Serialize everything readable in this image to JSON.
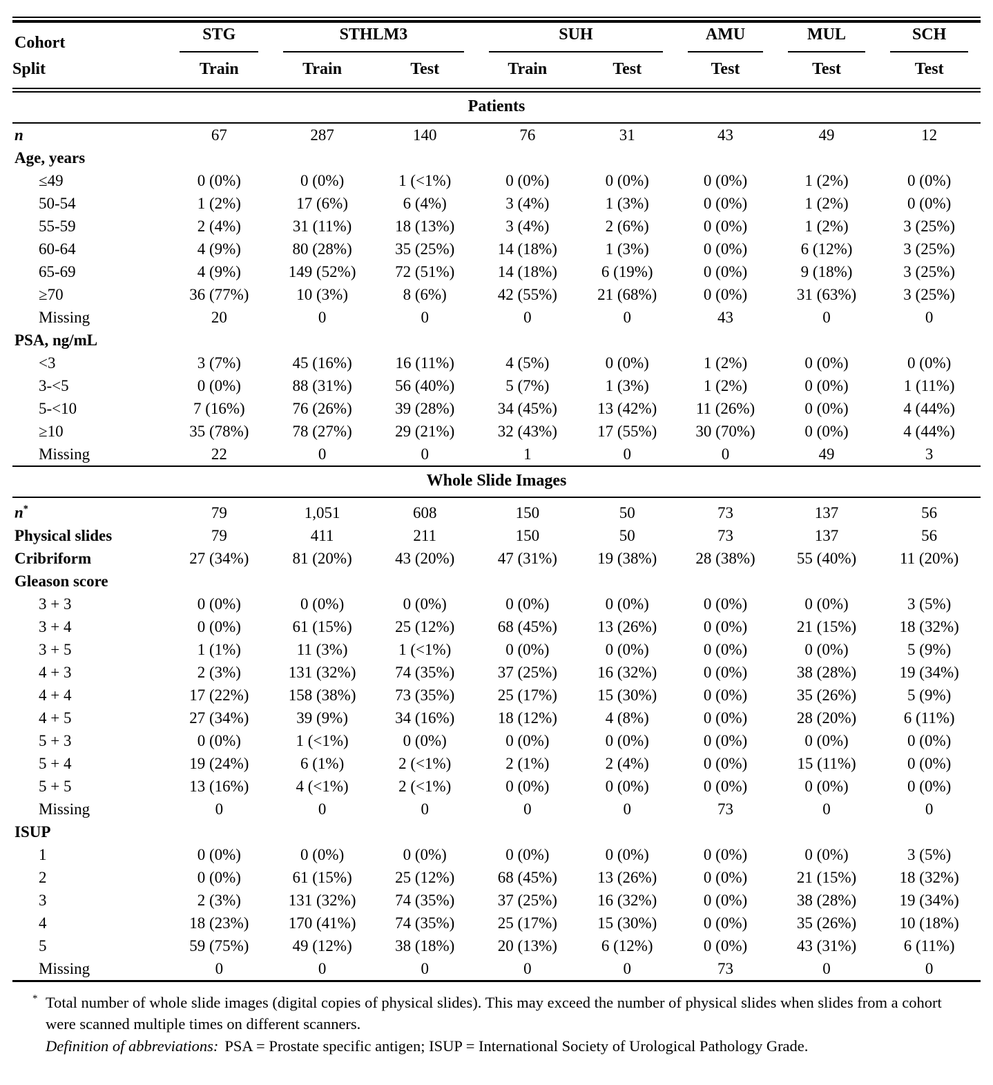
{
  "table": {
    "corner": {
      "cohort": "Cohort",
      "split": "Split"
    },
    "cohorts": [
      {
        "name": "STG",
        "splits": [
          "Train"
        ]
      },
      {
        "name": "STHLM3",
        "splits": [
          "Train",
          "Test"
        ]
      },
      {
        "name": "SUH",
        "splits": [
          "Train",
          "Test"
        ]
      },
      {
        "name": "AMU",
        "splits": [
          "Test"
        ]
      },
      {
        "name": "MUL",
        "splits": [
          "Test"
        ]
      },
      {
        "name": "SCH",
        "splits": [
          "Test"
        ]
      }
    ],
    "sections": [
      {
        "title": "Patients",
        "rows": [
          {
            "label": "n",
            "style": "n",
            "values": [
              "67",
              "287",
              "140",
              "76",
              "31",
              "43",
              "49",
              "12"
            ]
          },
          {
            "label": "Age, years",
            "style": "group",
            "values": []
          },
          {
            "label": "≤49",
            "style": "item",
            "values": [
              "0 (0%)",
              "0 (0%)",
              "1 (<1%)",
              "0 (0%)",
              "0 (0%)",
              "0 (0%)",
              "1 (2%)",
              "0 (0%)"
            ]
          },
          {
            "label": "50-54",
            "style": "item",
            "values": [
              "1 (2%)",
              "17 (6%)",
              "6 (4%)",
              "3 (4%)",
              "1 (3%)",
              "0 (0%)",
              "1 (2%)",
              "0 (0%)"
            ]
          },
          {
            "label": "55-59",
            "style": "item",
            "values": [
              "2 (4%)",
              "31 (11%)",
              "18 (13%)",
              "3 (4%)",
              "2 (6%)",
              "0 (0%)",
              "1 (2%)",
              "3 (25%)"
            ]
          },
          {
            "label": "60-64",
            "style": "item",
            "values": [
              "4 (9%)",
              "80 (28%)",
              "35 (25%)",
              "14 (18%)",
              "1 (3%)",
              "0 (0%)",
              "6 (12%)",
              "3 (25%)"
            ]
          },
          {
            "label": "65-69",
            "style": "item",
            "values": [
              "4 (9%)",
              "149 (52%)",
              "72 (51%)",
              "14 (18%)",
              "6 (19%)",
              "0 (0%)",
              "9 (18%)",
              "3 (25%)"
            ]
          },
          {
            "label": "≥70",
            "style": "item",
            "values": [
              "36 (77%)",
              "10 (3%)",
              "8 (6%)",
              "42 (55%)",
              "21 (68%)",
              "0 (0%)",
              "31 (63%)",
              "3 (25%)"
            ]
          },
          {
            "label": "Missing",
            "style": "item",
            "values": [
              "20",
              "0",
              "0",
              "0",
              "0",
              "43",
              "0",
              "0"
            ]
          },
          {
            "label": "PSA, ng/mL",
            "style": "group",
            "values": []
          },
          {
            "label": "<3",
            "style": "item",
            "values": [
              "3 (7%)",
              "45 (16%)",
              "16 (11%)",
              "4 (5%)",
              "0 (0%)",
              "1 (2%)",
              "0 (0%)",
              "0 (0%)"
            ]
          },
          {
            "label": "3-<5",
            "style": "item",
            "values": [
              "0 (0%)",
              "88 (31%)",
              "56 (40%)",
              "5 (7%)",
              "1 (3%)",
              "1 (2%)",
              "0 (0%)",
              "1 (11%)"
            ]
          },
          {
            "label": "5-<10",
            "style": "item",
            "values": [
              "7 (16%)",
              "76 (26%)",
              "39 (28%)",
              "34 (45%)",
              "13 (42%)",
              "11 (26%)",
              "0 (0%)",
              "4 (44%)"
            ]
          },
          {
            "label": "≥10",
            "style": "item",
            "values": [
              "35 (78%)",
              "78 (27%)",
              "29 (21%)",
              "32 (43%)",
              "17 (55%)",
              "30 (70%)",
              "0 (0%)",
              "4 (44%)"
            ]
          },
          {
            "label": "Missing",
            "style": "item",
            "values": [
              "22",
              "0",
              "0",
              "1",
              "0",
              "0",
              "49",
              "3"
            ]
          }
        ]
      },
      {
        "title": "Whole Slide Images",
        "rows": [
          {
            "label": "n",
            "sup": "*",
            "style": "nstar",
            "values": [
              "79",
              "1,051",
              "608",
              "150",
              "50",
              "73",
              "137",
              "56"
            ]
          },
          {
            "label": "Physical slides",
            "style": "group",
            "values": [
              "79",
              "411",
              "211",
              "150",
              "50",
              "73",
              "137",
              "56"
            ]
          },
          {
            "label": "Cribriform",
            "style": "group",
            "values": [
              "27 (34%)",
              "81 (20%)",
              "43 (20%)",
              "47 (31%)",
              "19 (38%)",
              "28 (38%)",
              "55 (40%)",
              "11 (20%)"
            ]
          },
          {
            "label": "Gleason score",
            "style": "group",
            "values": []
          },
          {
            "label": "3 + 3",
            "style": "item",
            "values": [
              "0 (0%)",
              "0 (0%)",
              "0 (0%)",
              "0 (0%)",
              "0 (0%)",
              "0 (0%)",
              "0 (0%)",
              "3 (5%)"
            ]
          },
          {
            "label": "3 + 4",
            "style": "item",
            "values": [
              "0 (0%)",
              "61 (15%)",
              "25 (12%)",
              "68 (45%)",
              "13 (26%)",
              "0 (0%)",
              "21 (15%)",
              "18 (32%)"
            ]
          },
          {
            "label": "3 + 5",
            "style": "item",
            "values": [
              "1 (1%)",
              "11 (3%)",
              "1 (<1%)",
              "0 (0%)",
              "0 (0%)",
              "0 (0%)",
              "0 (0%)",
              "5 (9%)"
            ]
          },
          {
            "label": "4 + 3",
            "style": "item",
            "values": [
              "2 (3%)",
              "131 (32%)",
              "74 (35%)",
              "37 (25%)",
              "16 (32%)",
              "0 (0%)",
              "38 (28%)",
              "19 (34%)"
            ]
          },
          {
            "label": "4 + 4",
            "style": "item",
            "values": [
              "17 (22%)",
              "158 (38%)",
              "73 (35%)",
              "25 (17%)",
              "15 (30%)",
              "0 (0%)",
              "35 (26%)",
              "5 (9%)"
            ]
          },
          {
            "label": "4 + 5",
            "style": "item",
            "values": [
              "27 (34%)",
              "39 (9%)",
              "34 (16%)",
              "18 (12%)",
              "4 (8%)",
              "0 (0%)",
              "28 (20%)",
              "6 (11%)"
            ]
          },
          {
            "label": "5 + 3",
            "style": "item",
            "values": [
              "0 (0%)",
              "1 (<1%)",
              "0 (0%)",
              "0 (0%)",
              "0 (0%)",
              "0 (0%)",
              "0 (0%)",
              "0 (0%)"
            ]
          },
          {
            "label": "5 + 4",
            "style": "item",
            "values": [
              "19 (24%)",
              "6 (1%)",
              "2 (<1%)",
              "2 (1%)",
              "2 (4%)",
              "0 (0%)",
              "15 (11%)",
              "0 (0%)"
            ]
          },
          {
            "label": "5 + 5",
            "style": "item",
            "values": [
              "13 (16%)",
              "4 (<1%)",
              "2 (<1%)",
              "0 (0%)",
              "0 (0%)",
              "0 (0%)",
              "0 (0%)",
              "0 (0%)"
            ]
          },
          {
            "label": "Missing",
            "style": "item",
            "values": [
              "0",
              "0",
              "0",
              "0",
              "0",
              "73",
              "0",
              "0"
            ]
          },
          {
            "label": "ISUP",
            "style": "group",
            "values": []
          },
          {
            "label": "1",
            "style": "item",
            "values": [
              "0 (0%)",
              "0 (0%)",
              "0 (0%)",
              "0 (0%)",
              "0 (0%)",
              "0 (0%)",
              "0 (0%)",
              "3 (5%)"
            ]
          },
          {
            "label": "2",
            "style": "item",
            "values": [
              "0 (0%)",
              "61 (15%)",
              "25 (12%)",
              "68 (45%)",
              "13 (26%)",
              "0 (0%)",
              "21 (15%)",
              "18 (32%)"
            ]
          },
          {
            "label": "3",
            "style": "item",
            "values": [
              "2 (3%)",
              "131 (32%)",
              "74 (35%)",
              "37 (25%)",
              "16 (32%)",
              "0 (0%)",
              "38 (28%)",
              "19 (34%)"
            ]
          },
          {
            "label": "4",
            "style": "item",
            "values": [
              "18 (23%)",
              "170 (41%)",
              "74 (35%)",
              "25 (17%)",
              "15 (30%)",
              "0 (0%)",
              "35 (26%)",
              "10 (18%)"
            ]
          },
          {
            "label": "5",
            "style": "item",
            "values": [
              "59 (75%)",
              "49 (12%)",
              "38 (18%)",
              "20 (13%)",
              "6 (12%)",
              "0 (0%)",
              "43 (31%)",
              "6 (11%)"
            ]
          },
          {
            "label": "Missing",
            "style": "item",
            "values": [
              "0",
              "0",
              "0",
              "0",
              "0",
              "73",
              "0",
              "0"
            ]
          }
        ]
      }
    ]
  },
  "footnotes": {
    "star": {
      "marker": "*",
      "text": "Total number of whole slide images (digital copies of physical slides). This may exceed the number of physical slides when slides from a cohort were scanned multiple times on different scanners."
    },
    "abbreviations": {
      "lead": "Definition of abbreviations:",
      "text": "PSA = Prostate specific antigen; ISUP = International Society of Urological Pathology Grade."
    }
  }
}
